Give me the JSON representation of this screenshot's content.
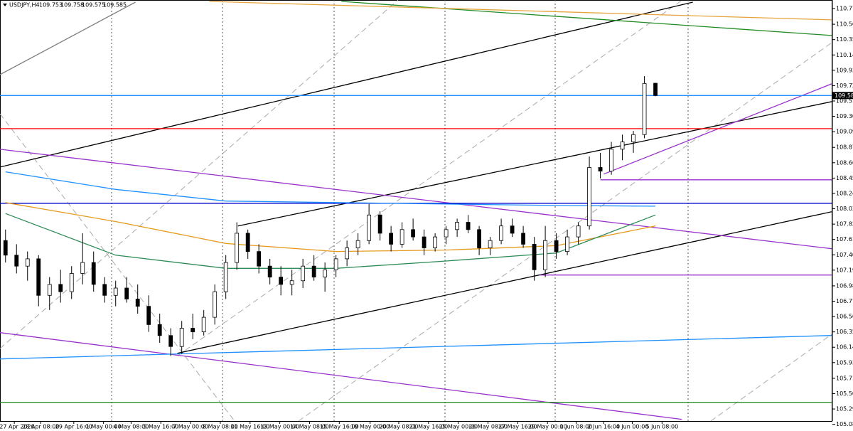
{
  "chart_data": {
    "type": "candlestick",
    "title": "USDJPY,H4",
    "up_color": "#ffffff",
    "down_color": "#000000",
    "xlim": [
      -0.5,
      75
    ],
    "ylim": [
      105.13,
      110.892
    ],
    "yticks": [
      110.775,
      {
        "value": 110.56,
        "label": "110.560"
      },
      {
        "value": 110.35,
        "label": "110.350"
      },
      {
        "value": 110.14,
        "label": "110.140"
      },
      {
        "value": 109.93,
        "label": "109.930"
      },
      {
        "value": 109.72,
        "label": "109.720"
      },
      {
        "value": 109.51,
        "label": "109.510"
      },
      {
        "value": 109.3,
        "label": "109.300"
      },
      {
        "value": 109.09,
        "label": "109.090"
      },
      108.875,
      108.665,
      108.455,
      108.245,
      108.035,
      107.825,
      107.615,
      107.405,
      107.195,
      {
        "value": 106.98,
        "label": "106.980"
      },
      {
        "value": 106.77,
        "label": "106.770"
      },
      {
        "value": 106.56,
        "label": "106.560"
      },
      {
        "value": 106.35,
        "label": "106.350"
      },
      {
        "value": 106.14,
        "label": "106.140"
      },
      {
        "value": 105.93,
        "label": "105.930"
      },
      105.715,
      105.505,
      105.295,
      105.085
    ],
    "xticks": [
      {
        "value": 0.8,
        "label": "27 Apr 2020"
      },
      {
        "value": 3.2,
        "label": "28 Apr 08:00"
      },
      {
        "value": 6.2,
        "label": "29 Apr 16:00"
      },
      {
        "value": 8.9,
        "label": "1 May 00:00"
      },
      {
        "value": 11.4,
        "label": "4 May 08:00"
      },
      {
        "value": 14.1,
        "label": "5 May 16:00"
      },
      {
        "value": 16.8,
        "label": "7 May 00:00"
      },
      {
        "value": 19.5,
        "label": "8 May 08:00"
      },
      {
        "value": 22.2,
        "label": "11 May 16:00"
      },
      {
        "value": 24.9,
        "label": "13 May 00:00"
      },
      {
        "value": 27.6,
        "label": "14 May 08:00"
      },
      {
        "value": 30.3,
        "label": "15 May 16:00"
      },
      {
        "value": 33.1,
        "label": "19 May 00:00"
      },
      {
        "value": 35.7,
        "label": "20 May 08:00"
      },
      {
        "value": 38.4,
        "label": "21 May 16:00"
      },
      {
        "value": 41.1,
        "label": "25 May 00:00"
      },
      {
        "value": 43.8,
        "label": "26 May 08:00"
      },
      {
        "value": 46.5,
        "label": "27 May 16:00"
      },
      {
        "value": 49.2,
        "label": "29 May 00:00"
      },
      {
        "value": 51.8,
        "label": "1 Jun 08:00"
      },
      {
        "value": 54.3,
        "label": "2 Jun 16:00"
      },
      {
        "value": 56.9,
        "label": "4 Jun 00:00"
      },
      {
        "value": 59.6,
        "label": "5 Jun 08:00"
      }
    ],
    "candles": [
      [
        107.6,
        107.75,
        107.3,
        107.4
      ],
      [
        107.4,
        107.55,
        107.15,
        107.25
      ],
      [
        107.25,
        107.45,
        107.05,
        107.35
      ],
      [
        107.35,
        107.4,
        106.7,
        106.85
      ],
      [
        106.85,
        107.1,
        106.65,
        107.0
      ],
      [
        107.0,
        107.2,
        106.75,
        106.9
      ],
      [
        106.9,
        107.25,
        106.8,
        107.15
      ],
      [
        107.15,
        107.7,
        107.0,
        107.3
      ],
      [
        107.3,
        107.45,
        106.9,
        107.0
      ],
      [
        107.0,
        107.1,
        106.75,
        106.85
      ],
      [
        106.85,
        107.05,
        106.7,
        106.95
      ],
      [
        106.95,
        107.1,
        106.75,
        106.8
      ],
      [
        106.8,
        107.0,
        106.6,
        106.7
      ],
      [
        106.7,
        106.85,
        106.35,
        106.45
      ],
      [
        106.45,
        106.6,
        106.2,
        106.3
      ],
      [
        106.3,
        106.4,
        106.02,
        106.15
      ],
      [
        106.15,
        106.5,
        106.05,
        106.4
      ],
      [
        106.4,
        106.6,
        106.25,
        106.35
      ],
      [
        106.35,
        106.65,
        106.3,
        106.55
      ],
      [
        106.55,
        107.0,
        106.45,
        106.9
      ],
      [
        106.9,
        107.4,
        106.8,
        107.3
      ],
      [
        107.3,
        107.85,
        107.2,
        107.7
      ],
      [
        107.7,
        107.75,
        107.35,
        107.45
      ],
      [
        107.45,
        107.55,
        107.15,
        107.25
      ],
      [
        107.25,
        107.35,
        107.0,
        107.1
      ],
      [
        107.1,
        107.25,
        106.85,
        107.0
      ],
      [
        107.0,
        107.2,
        106.85,
        107.05
      ],
      [
        107.05,
        107.35,
        106.95,
        107.25
      ],
      [
        107.25,
        107.4,
        107.05,
        107.1
      ],
      [
        107.1,
        107.3,
        106.9,
        107.2
      ],
      [
        107.2,
        107.4,
        107.1,
        107.35
      ],
      [
        107.35,
        107.6,
        107.25,
        107.5
      ],
      [
        107.5,
        107.7,
        107.4,
        107.6
      ],
      [
        107.6,
        108.1,
        107.55,
        107.95
      ],
      [
        107.95,
        108.0,
        107.6,
        107.7
      ],
      [
        107.7,
        107.8,
        107.45,
        107.55
      ],
      [
        107.55,
        107.85,
        107.5,
        107.75
      ],
      [
        107.75,
        107.9,
        107.6,
        107.65
      ],
      [
        107.65,
        107.75,
        107.4,
        107.5
      ],
      [
        107.5,
        107.7,
        107.45,
        107.65
      ],
      [
        107.65,
        107.8,
        107.55,
        107.75
      ],
      [
        107.75,
        107.9,
        107.65,
        107.85
      ],
      [
        107.85,
        107.95,
        107.7,
        107.75
      ],
      [
        107.75,
        107.8,
        107.4,
        107.5
      ],
      [
        107.5,
        107.65,
        107.4,
        107.6
      ],
      [
        107.6,
        107.9,
        107.55,
        107.8
      ],
      [
        107.8,
        107.9,
        107.65,
        107.7
      ],
      [
        107.7,
        107.8,
        107.5,
        107.55
      ],
      [
        107.55,
        107.65,
        107.05,
        107.2
      ],
      [
        107.2,
        107.8,
        107.1,
        107.6
      ],
      [
        107.6,
        107.7,
        107.35,
        107.45
      ],
      [
        107.45,
        107.75,
        107.4,
        107.65
      ],
      [
        107.65,
        107.85,
        107.55,
        107.8
      ],
      [
        107.8,
        108.75,
        107.75,
        108.6
      ],
      [
        108.6,
        108.8,
        108.45,
        108.55
      ],
      [
        108.55,
        108.95,
        108.5,
        108.85
      ],
      [
        108.85,
        109.05,
        108.7,
        108.95
      ],
      [
        108.95,
        109.1,
        108.8,
        109.05
      ],
      [
        109.05,
        109.85,
        109.0,
        109.75
      ],
      [
        109.753,
        109.758,
        109.575,
        109.585
      ]
    ],
    "ma_x": [
      0,
      10,
      20,
      30,
      40,
      50,
      59
    ],
    "series": [
      {
        "color": "#1e90ff",
        "values": [
          108.54,
          108.3,
          108.14,
          108.12,
          108.1,
          108.08,
          108.07
        ]
      },
      {
        "color": "#e69b1e",
        "values": [
          108.12,
          107.86,
          107.56,
          107.45,
          107.47,
          107.53,
          107.8
        ]
      },
      {
        "color": "#2e8b57",
        "values": [
          107.97,
          107.4,
          107.22,
          107.22,
          107.32,
          107.43,
          107.95
        ]
      }
    ],
    "lines": [
      {
        "color": "#000000",
        "x": [
          -0.5,
          62.4
        ],
        "values": [
          108.606,
          110.863
        ]
      },
      {
        "color": "#000000",
        "x": [
          21.1,
          75
        ],
        "values": [
          107.799,
          109.501
        ]
      },
      {
        "color": "#000000",
        "x": [
          15.6,
          75
        ],
        "values": [
          106.058,
          107.994
        ]
      },
      {
        "color": "#9932cc",
        "x": [
          -0.5,
          75
        ],
        "values": [
          108.849,
          107.488
        ]
      },
      {
        "color": "#9932cc",
        "x": [
          -0.5,
          61.4
        ],
        "values": [
          106.34,
          105.153
        ]
      },
      {
        "color": "#9932cc",
        "x": [
          54.3,
          75
        ],
        "values": [
          108.509,
          109.744
        ]
      },
      {
        "color": "#1e90ff",
        "x": [
          -0.5,
          75
        ],
        "values": [
          105.98,
          106.301
        ]
      },
      {
        "color": "#228b22",
        "x": [
          30.5,
          75
        ],
        "values": [
          110.873,
          110.406
        ]
      },
      {
        "color": "#e6a23c",
        "x": [
          18.5,
          75
        ],
        "values": [
          110.873,
          110.62
        ]
      },
      {
        "color": "#808080",
        "x": [
          -0.5,
          11.8
        ],
        "values": [
          109.871,
          110.863
        ]
      },
      {
        "color": "#1e90ff",
        "x": [
          -0.5,
          75
        ],
        "values": [
          109.585,
          109.585
        ]
      },
      {
        "color": "#ff0000",
        "x": [
          -0.5,
          75
        ],
        "values": [
          109.131,
          109.131
        ]
      },
      {
        "color": "#0000cd",
        "x": [
          -0.5,
          75
        ],
        "values": [
          108.11,
          108.11
        ]
      },
      {
        "color": "#9932cc",
        "x": [
          54,
          75
        ],
        "values": [
          108.431,
          108.431
        ]
      },
      {
        "color": "#9932cc",
        "x": [
          48.5,
          75
        ],
        "values": [
          107.128,
          107.128
        ]
      },
      {
        "color": "#228b22",
        "x": [
          -0.5,
          75
        ],
        "values": [
          105.387,
          105.387
        ]
      }
    ]
  }
}
